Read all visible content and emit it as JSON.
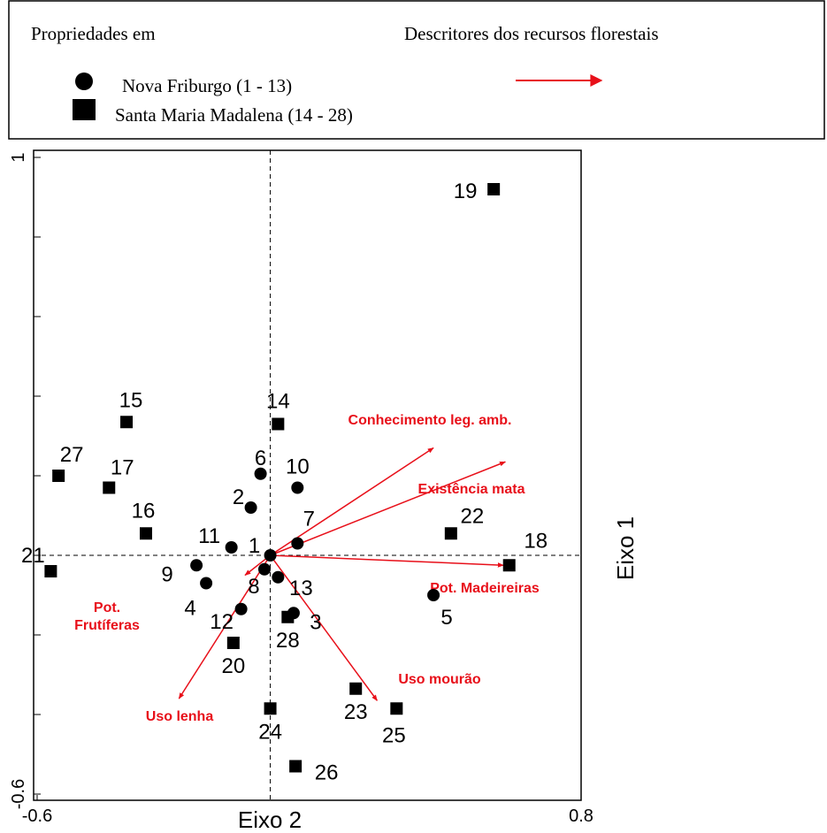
{
  "chart_data": {
    "type": "scatter",
    "legend_title_points": "Propriedades em",
    "legend_title_vectors": "Descritores dos recursos florestais",
    "x_label": "Eixo 2",
    "y_label": "Eixo 1",
    "xlim": [
      -0.6,
      0.8
    ],
    "ylim": [
      -0.6,
      1.0
    ],
    "xticks": [
      -0.6,
      0.8
    ],
    "yticks": [
      -0.6,
      1.0
    ],
    "y_minor_ticks": [
      -0.4,
      -0.2,
      0,
      0.2,
      0.4,
      0.6,
      0.8
    ],
    "series": [
      {
        "name": "Nova Friburgo (1 - 13)",
        "marker": "circle",
        "color": "#000000",
        "labels": [
          "1",
          "2",
          "3",
          "4",
          "5",
          "6",
          "7",
          "8",
          "9",
          "10",
          "11",
          "12",
          "13"
        ],
        "x": [
          0,
          -0.05,
          0.06,
          -0.165,
          0.42,
          -0.025,
          0.07,
          -0.015,
          -0.19,
          0.07,
          -0.1,
          -0.075,
          0.02
        ],
        "values": [
          0,
          0.12,
          -0.145,
          -0.07,
          -0.1,
          0.205,
          0.03,
          -0.035,
          -0.025,
          0.17,
          0.02,
          -0.135,
          -0.055
        ]
      },
      {
        "name": "Santa Maria Madalena  (14 - 28)",
        "marker": "square",
        "color": "#000000",
        "labels": [
          "14",
          "15",
          "16",
          "17",
          "18",
          "19",
          "20",
          "21",
          "22",
          "23",
          "24",
          "25",
          "26",
          "27",
          "28"
        ],
        "x": [
          0.02,
          -0.37,
          -0.32,
          -0.415,
          0.615,
          0.575,
          -0.095,
          -0.565,
          0.465,
          0.22,
          0.0,
          0.325,
          0.065,
          -0.545,
          0.045
        ],
        "values": [
          0.33,
          0.335,
          0.055,
          0.17,
          -0.025,
          0.92,
          -0.22,
          -0.04,
          0.055,
          -0.335,
          -0.385,
          -0.385,
          -0.53,
          0.2,
          -0.155
        ]
      }
    ],
    "vectors": {
      "color": "#e8101a",
      "names": [
        "Conhecimento leg. amb.",
        "Existência mata",
        "Pot. Madeireiras",
        "Uso mourão",
        "Uso lenha",
        [
          "Pot.",
          "Frutíferas"
        ]
      ],
      "x": [
        0.42,
        0.605,
        0.6,
        0.275,
        -0.235,
        -0.065
      ],
      "values": [
        0.27,
        0.235,
        -0.025,
        -0.365,
        -0.36,
        -0.05
      ]
    }
  }
}
